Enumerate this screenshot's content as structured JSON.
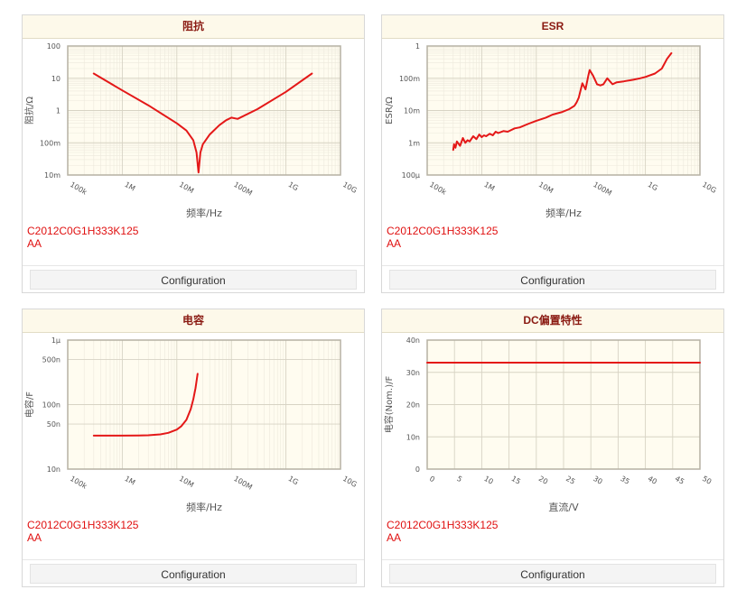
{
  "part_number": "C2012C0G1H333K125",
  "part_suffix": "AA",
  "config_label": "Configuration",
  "colors": {
    "curve": "#e41818",
    "plot_bg": "#fffcf0",
    "title_text": "#8a1a12",
    "legend_text": "#e01010"
  },
  "chart_data": [
    {
      "id": "impedance",
      "type": "line",
      "title": "阻抗",
      "xlabel": "频率/Hz",
      "ylabel": "阻抗/Ω",
      "xscale": "log",
      "yscale": "log",
      "xlim": [
        100000,
        10000000000
      ],
      "ylim": [
        0.01,
        100
      ],
      "xticks": [
        "100k",
        "1M",
        "10M",
        "100M",
        "1G",
        "10G"
      ],
      "yticks": [
        "10m",
        "100m",
        "1",
        "10",
        "100"
      ],
      "series": [
        {
          "x": [
            300000,
            1000000,
            3000000,
            10000000,
            15000000,
            20000000,
            23000000,
            25000000,
            27000000,
            30000000,
            40000000,
            60000000,
            80000000,
            100000000,
            130000000,
            300000000,
            1000000000,
            3000000000
          ],
          "y": [
            14,
            4.2,
            1.45,
            0.4,
            0.24,
            0.12,
            0.05,
            0.012,
            0.05,
            0.09,
            0.18,
            0.35,
            0.5,
            0.6,
            0.55,
            1.1,
            3.8,
            14
          ]
        }
      ]
    },
    {
      "id": "esr",
      "type": "line",
      "title": "ESR",
      "xlabel": "频率/Hz",
      "ylabel": "ESR/Ω",
      "xscale": "log",
      "yscale": "log",
      "xlim": [
        100000,
        10000000000
      ],
      "ylim": [
        0.0001,
        1
      ],
      "xticks": [
        "100k",
        "1M",
        "10M",
        "100M",
        "1G",
        "10G"
      ],
      "yticks": [
        "100μ",
        "1m",
        "10m",
        "100m",
        "1"
      ],
      "series": [
        {
          "x": [
            300000,
            310000,
            330000,
            350000,
            400000,
            450000,
            500000,
            550000,
            600000,
            700000,
            800000,
            900000,
            1000000,
            1100000,
            1200000,
            1400000,
            1600000,
            1800000,
            2000000,
            2500000,
            3000000,
            4000000,
            5000000,
            7000000,
            10000000,
            15000000,
            20000000,
            30000000,
            40000000,
            50000000,
            55000000,
            60000000,
            70000000,
            80000000,
            90000000,
            95000000,
            110000000,
            130000000,
            150000000,
            170000000,
            200000000,
            250000000,
            300000000,
            400000000,
            600000000,
            800000000,
            1000000000,
            1500000000,
            2000000000,
            2500000000,
            3000000000
          ],
          "y": [
            0.0006,
            0.0009,
            0.0007,
            0.0011,
            0.0008,
            0.0014,
            0.001,
            0.0012,
            0.0011,
            0.0016,
            0.0013,
            0.0018,
            0.0015,
            0.0017,
            0.0016,
            0.0019,
            0.0017,
            0.0022,
            0.002,
            0.0023,
            0.0022,
            0.0028,
            0.003,
            0.0038,
            0.0048,
            0.006,
            0.0075,
            0.009,
            0.011,
            0.014,
            0.018,
            0.025,
            0.07,
            0.045,
            0.12,
            0.18,
            0.12,
            0.065,
            0.06,
            0.065,
            0.1,
            0.065,
            0.075,
            0.08,
            0.09,
            0.1,
            0.11,
            0.14,
            0.2,
            0.4,
            0.6
          ]
        }
      ]
    },
    {
      "id": "capacitance",
      "type": "line",
      "title": "电容",
      "xlabel": "频率/Hz",
      "ylabel": "电容/F",
      "xscale": "log",
      "yscale": "log",
      "xlim": [
        100000,
        10000000000
      ],
      "ylim": [
        1e-08,
        1e-06
      ],
      "xticks": [
        "100k",
        "1M",
        "10M",
        "100M",
        "1G",
        "10G"
      ],
      "yticks": [
        "10n",
        "50n",
        "100n",
        "500n",
        "1μ"
      ],
      "ytick_values": [
        1e-08,
        5e-08,
        1e-07,
        5e-07,
        1e-06
      ],
      "series": [
        {
          "x": [
            300000,
            1000000,
            2000000,
            3000000,
            5000000,
            7000000,
            10000000,
            12000000,
            15000000,
            18000000,
            20000000,
            22000000,
            24000000
          ],
          "y": [
            3.3e-08,
            3.3e-08,
            3.32e-08,
            3.35e-08,
            3.45e-08,
            3.65e-08,
            4.1e-08,
            4.6e-08,
            5.8e-08,
            8.5e-08,
            1.2e-07,
            1.8e-07,
            3e-07
          ]
        }
      ]
    },
    {
      "id": "dc-bias",
      "type": "line",
      "title": "DC偏置特性",
      "xlabel": "直流/V",
      "ylabel": "电容(Nom.)/F",
      "xscale": "linear",
      "yscale": "linear",
      "xlim": [
        0,
        50
      ],
      "ylim": [
        0,
        4e-08
      ],
      "xticks": [
        "0",
        "5",
        "10",
        "15",
        "20",
        "25",
        "30",
        "35",
        "40",
        "45",
        "50"
      ],
      "xtick_values": [
        0,
        5,
        10,
        15,
        20,
        25,
        30,
        35,
        40,
        45,
        50
      ],
      "yticks": [
        "0",
        "10n",
        "20n",
        "30n",
        "40n"
      ],
      "ytick_values": [
        0,
        1e-08,
        2e-08,
        3e-08,
        4e-08
      ],
      "series": [
        {
          "x": [
            0,
            50
          ],
          "y": [
            3.3e-08,
            3.3e-08
          ]
        }
      ]
    }
  ]
}
